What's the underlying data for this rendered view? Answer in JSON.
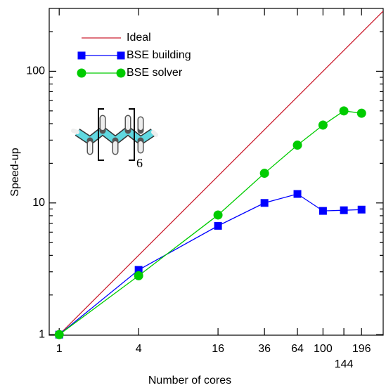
{
  "chart_data": {
    "type": "line",
    "log_x": true,
    "log_y": true,
    "x_label": "Number of cores",
    "y_label": "Speed-up",
    "xlim": [
      0.84,
      286
    ],
    "ylim": [
      0.99,
      300
    ],
    "xticks": [
      1,
      4,
      16,
      36,
      64,
      100,
      144,
      196
    ],
    "yticks": [
      1,
      10,
      100
    ],
    "yminorticks": [
      2,
      3,
      4,
      5,
      6,
      7,
      8,
      9,
      20,
      30,
      40,
      50,
      60,
      70,
      80,
      90,
      200
    ],
    "legend": "upper left",
    "annotation": "6",
    "series": [
      {
        "name": "Ideal",
        "color": "#cc2233",
        "marker": "none",
        "x": [
          1,
          286
        ],
        "values": [
          1,
          286
        ]
      },
      {
        "name": "BSE building",
        "color": "#0000ff",
        "marker": "square",
        "x": [
          1,
          4,
          16,
          36,
          64,
          100,
          144,
          196
        ],
        "values": [
          1,
          3.1,
          6.7,
          10,
          11.7,
          8.7,
          8.8,
          8.9
        ]
      },
      {
        "name": "BSE solver",
        "color": "#00cc00",
        "marker": "circle",
        "x": [
          1,
          4,
          16,
          36,
          64,
          100,
          144,
          196
        ],
        "values": [
          1,
          2.8,
          8.1,
          16.8,
          27.5,
          39,
          50,
          48
        ]
      }
    ]
  }
}
